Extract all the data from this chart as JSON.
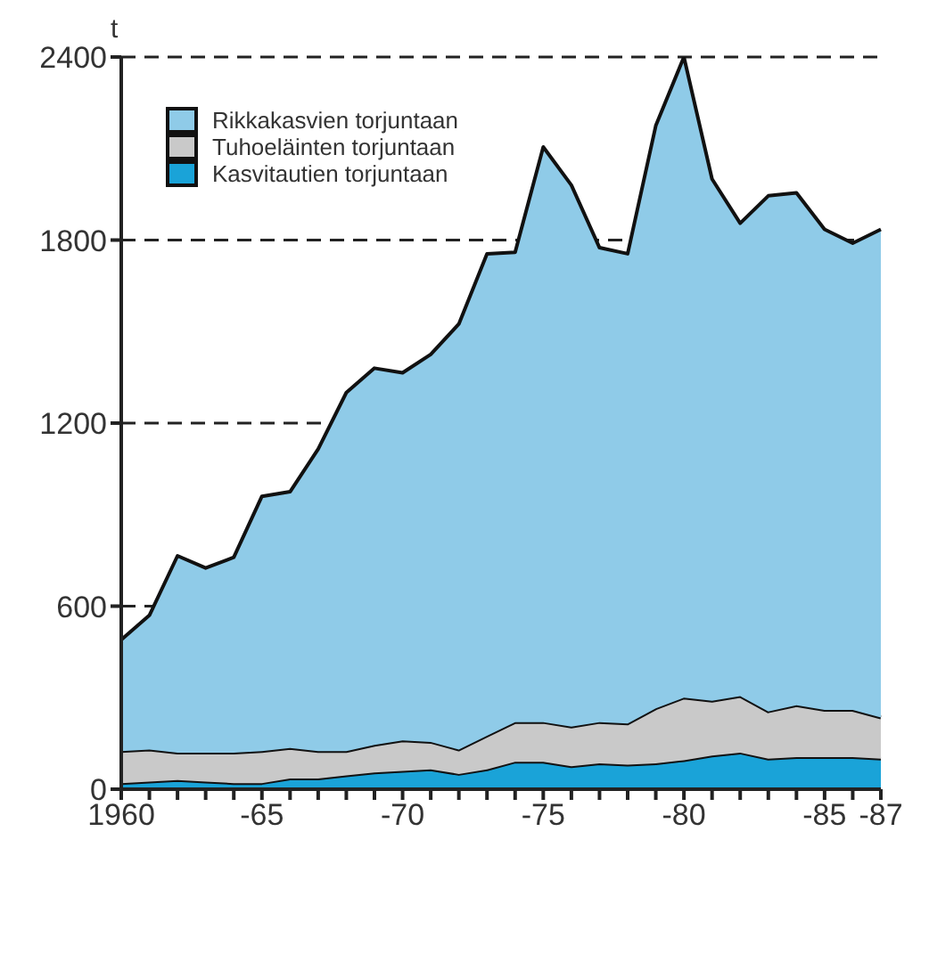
{
  "chart_data": {
    "type": "area",
    "stacked": true,
    "ylabel": "t",
    "categories": [
      "1960",
      null,
      null,
      null,
      null,
      "-65",
      null,
      null,
      null,
      null,
      "-70",
      null,
      null,
      null,
      null,
      "-75",
      null,
      null,
      null,
      null,
      "-80",
      null,
      null,
      null,
      null,
      "-85",
      null,
      "-87"
    ],
    "series": [
      {
        "name": "Kasvitautien torjuntaan",
        "color": "#1aa3d8",
        "values": [
          20,
          25,
          30,
          25,
          20,
          20,
          35,
          35,
          45,
          55,
          60,
          65,
          50,
          65,
          90,
          90,
          75,
          85,
          80,
          85,
          95,
          110,
          120,
          100,
          105,
          105,
          105,
          100
        ]
      },
      {
        "name": "Tuhoeläinten torjuntaan",
        "color": "#c9c9c9",
        "values": [
          105,
          105,
          90,
          95,
          100,
          105,
          100,
          90,
          80,
          90,
          100,
          90,
          80,
          110,
          130,
          130,
          130,
          135,
          135,
          180,
          205,
          180,
          185,
          155,
          170,
          155,
          155,
          135
        ]
      },
      {
        "name": "Rikkakasvien torjuntaan",
        "color": "#8fcbe8",
        "values": [
          365,
          440,
          645,
          605,
          640,
          835,
          840,
          990,
          1175,
          1235,
          1205,
          1270,
          1395,
          1580,
          1540,
          1885,
          1775,
          1555,
          1540,
          1910,
          2100,
          1710,
          1550,
          1690,
          1680,
          1575,
          1530,
          1600
        ]
      }
    ],
    "ylim": [
      0,
      2400
    ],
    "yticks": [
      0,
      600,
      1200,
      1800,
      2400
    ],
    "grid": "y",
    "legend": "top left",
    "line_style": "solid"
  }
}
